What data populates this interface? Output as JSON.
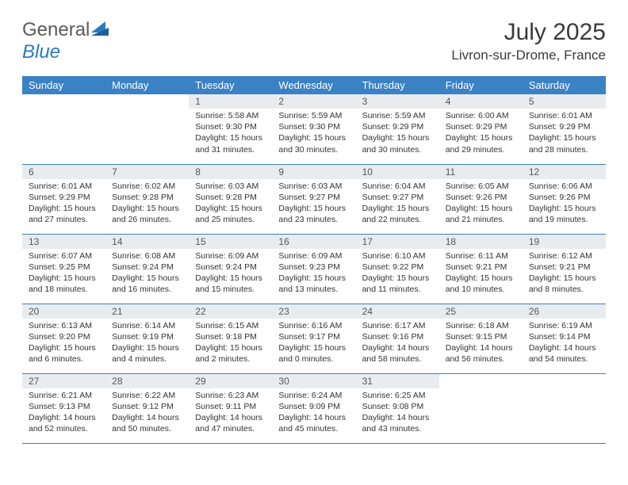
{
  "logo": {
    "text1": "General",
    "text2": "Blue"
  },
  "title": "July 2025",
  "subtitle": "Livron-sur-Drome, France",
  "colors": {
    "header_bg": "#3b82c4",
    "header_fg": "#ffffff",
    "daynum_bg": "#e9ecef",
    "border": "#3b82c4",
    "logo_gray": "#5a5a5a",
    "logo_blue": "#2a7abf"
  },
  "dayNames": [
    "Sunday",
    "Monday",
    "Tuesday",
    "Wednesday",
    "Thursday",
    "Friday",
    "Saturday"
  ],
  "weeks": [
    [
      null,
      null,
      {
        "n": "1",
        "sunrise": "5:58 AM",
        "sunset": "9:30 PM",
        "daylight": "15 hours and 31 minutes."
      },
      {
        "n": "2",
        "sunrise": "5:59 AM",
        "sunset": "9:30 PM",
        "daylight": "15 hours and 30 minutes."
      },
      {
        "n": "3",
        "sunrise": "5:59 AM",
        "sunset": "9:29 PM",
        "daylight": "15 hours and 30 minutes."
      },
      {
        "n": "4",
        "sunrise": "6:00 AM",
        "sunset": "9:29 PM",
        "daylight": "15 hours and 29 minutes."
      },
      {
        "n": "5",
        "sunrise": "6:01 AM",
        "sunset": "9:29 PM",
        "daylight": "15 hours and 28 minutes."
      }
    ],
    [
      {
        "n": "6",
        "sunrise": "6:01 AM",
        "sunset": "9:29 PM",
        "daylight": "15 hours and 27 minutes."
      },
      {
        "n": "7",
        "sunrise": "6:02 AM",
        "sunset": "9:28 PM",
        "daylight": "15 hours and 26 minutes."
      },
      {
        "n": "8",
        "sunrise": "6:03 AM",
        "sunset": "9:28 PM",
        "daylight": "15 hours and 25 minutes."
      },
      {
        "n": "9",
        "sunrise": "6:03 AM",
        "sunset": "9:27 PM",
        "daylight": "15 hours and 23 minutes."
      },
      {
        "n": "10",
        "sunrise": "6:04 AM",
        "sunset": "9:27 PM",
        "daylight": "15 hours and 22 minutes."
      },
      {
        "n": "11",
        "sunrise": "6:05 AM",
        "sunset": "9:26 PM",
        "daylight": "15 hours and 21 minutes."
      },
      {
        "n": "12",
        "sunrise": "6:06 AM",
        "sunset": "9:26 PM",
        "daylight": "15 hours and 19 minutes."
      }
    ],
    [
      {
        "n": "13",
        "sunrise": "6:07 AM",
        "sunset": "9:25 PM",
        "daylight": "15 hours and 18 minutes."
      },
      {
        "n": "14",
        "sunrise": "6:08 AM",
        "sunset": "9:24 PM",
        "daylight": "15 hours and 16 minutes."
      },
      {
        "n": "15",
        "sunrise": "6:09 AM",
        "sunset": "9:24 PM",
        "daylight": "15 hours and 15 minutes."
      },
      {
        "n": "16",
        "sunrise": "6:09 AM",
        "sunset": "9:23 PM",
        "daylight": "15 hours and 13 minutes."
      },
      {
        "n": "17",
        "sunrise": "6:10 AM",
        "sunset": "9:22 PM",
        "daylight": "15 hours and 11 minutes."
      },
      {
        "n": "18",
        "sunrise": "6:11 AM",
        "sunset": "9:21 PM",
        "daylight": "15 hours and 10 minutes."
      },
      {
        "n": "19",
        "sunrise": "6:12 AM",
        "sunset": "9:21 PM",
        "daylight": "15 hours and 8 minutes."
      }
    ],
    [
      {
        "n": "20",
        "sunrise": "6:13 AM",
        "sunset": "9:20 PM",
        "daylight": "15 hours and 6 minutes."
      },
      {
        "n": "21",
        "sunrise": "6:14 AM",
        "sunset": "9:19 PM",
        "daylight": "15 hours and 4 minutes."
      },
      {
        "n": "22",
        "sunrise": "6:15 AM",
        "sunset": "9:18 PM",
        "daylight": "15 hours and 2 minutes."
      },
      {
        "n": "23",
        "sunrise": "6:16 AM",
        "sunset": "9:17 PM",
        "daylight": "15 hours and 0 minutes."
      },
      {
        "n": "24",
        "sunrise": "6:17 AM",
        "sunset": "9:16 PM",
        "daylight": "14 hours and 58 minutes."
      },
      {
        "n": "25",
        "sunrise": "6:18 AM",
        "sunset": "9:15 PM",
        "daylight": "14 hours and 56 minutes."
      },
      {
        "n": "26",
        "sunrise": "6:19 AM",
        "sunset": "9:14 PM",
        "daylight": "14 hours and 54 minutes."
      }
    ],
    [
      {
        "n": "27",
        "sunrise": "6:21 AM",
        "sunset": "9:13 PM",
        "daylight": "14 hours and 52 minutes."
      },
      {
        "n": "28",
        "sunrise": "6:22 AM",
        "sunset": "9:12 PM",
        "daylight": "14 hours and 50 minutes."
      },
      {
        "n": "29",
        "sunrise": "6:23 AM",
        "sunset": "9:11 PM",
        "daylight": "14 hours and 47 minutes."
      },
      {
        "n": "30",
        "sunrise": "6:24 AM",
        "sunset": "9:09 PM",
        "daylight": "14 hours and 45 minutes."
      },
      {
        "n": "31",
        "sunrise": "6:25 AM",
        "sunset": "9:08 PM",
        "daylight": "14 hours and 43 minutes."
      },
      null,
      null
    ]
  ],
  "labels": {
    "sunrise": "Sunrise:",
    "sunset": "Sunset:",
    "daylight": "Daylight:"
  }
}
